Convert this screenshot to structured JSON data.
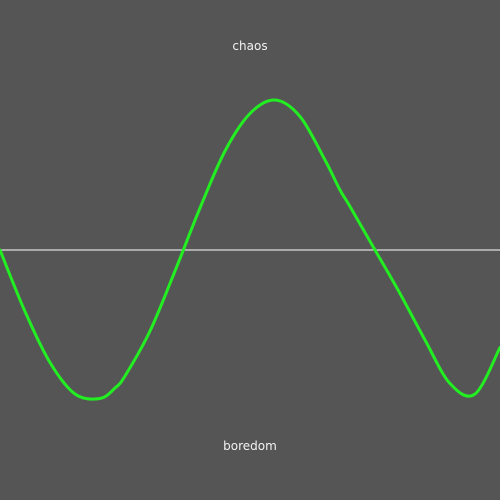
{
  "labels": {
    "top": "chaos",
    "bottom": "boredom"
  },
  "colors": {
    "background": "#555555",
    "curve": "#22ee22",
    "axis": "#ffffff",
    "label": "#f2f2f2"
  },
  "chart_data": {
    "type": "line",
    "title": "",
    "xlabel": "",
    "ylabel": "",
    "xlim": [
      0,
      1
    ],
    "ylim": [
      -1,
      1
    ],
    "grid": false,
    "legend": "none",
    "baseline": 0,
    "top_label": "chaos",
    "bottom_label": "boredom",
    "series": [
      {
        "x": [
          0,
          0.05,
          0.1,
          0.15,
          0.2,
          0.23,
          0.25,
          0.3,
          0.35,
          0.4,
          0.45,
          0.5,
          0.55,
          0.6,
          0.65,
          0.68,
          0.7,
          0.75,
          0.8,
          0.85,
          0.9,
          0.95,
          1.0
        ],
        "y": [
          0.0,
          -0.41,
          -0.75,
          -0.96,
          -0.99,
          -0.92,
          -0.84,
          -0.54,
          -0.14,
          0.28,
          0.66,
          0.91,
          1.0,
          0.89,
          0.6,
          0.4,
          0.29,
          -0.0,
          -0.29,
          -0.6,
          -0.89,
          -0.96,
          -0.65
        ]
      }
    ]
  }
}
